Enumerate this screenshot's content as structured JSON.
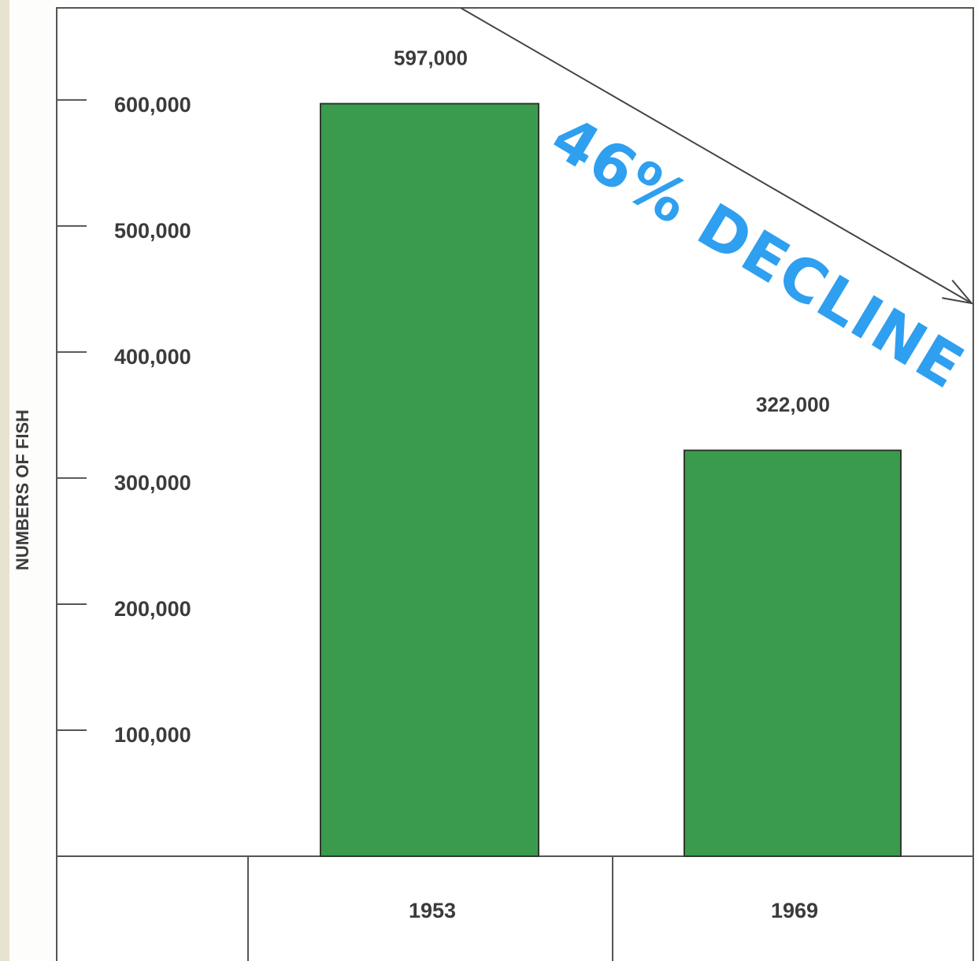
{
  "chart_data": {
    "type": "bar",
    "y_label": "NUMBERS OF FISH",
    "categories": [
      "1953",
      "1969"
    ],
    "values": [
      597000,
      322000
    ],
    "value_labels": [
      "597,000",
      "322,000"
    ],
    "color": "#3b9b4c",
    "ylim": [
      0,
      673000
    ],
    "yticks": [
      {
        "value": 100000,
        "label": "100,000"
      },
      {
        "value": 200000,
        "label": "200,000"
      },
      {
        "value": 300000,
        "label": "300,000"
      },
      {
        "value": 400000,
        "label": "400,000"
      },
      {
        "value": 500000,
        "label": "500,000"
      },
      {
        "value": 600000,
        "label": "600,000"
      }
    ],
    "annotation": "46% DECLINE"
  }
}
